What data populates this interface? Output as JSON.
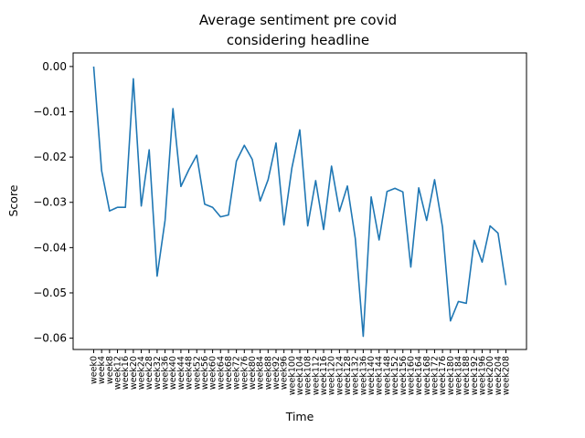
{
  "chart_data": {
    "type": "line",
    "title_lines": [
      "Average sentiment pre covid",
      "considering headline"
    ],
    "xlabel": "Time",
    "ylabel": "Score",
    "ylim": [
      -0.0625,
      0.003
    ],
    "yticks": [
      0.0,
      -0.01,
      -0.02,
      -0.03,
      -0.04,
      -0.05,
      -0.06
    ],
    "ytick_labels": [
      "0.00",
      "−0.01",
      "−0.02",
      "−0.03",
      "−0.04",
      "−0.05",
      "−0.06"
    ],
    "grid": false,
    "categories": [
      "week0",
      "week4",
      "week8",
      "week12",
      "week16",
      "week20",
      "week24",
      "week28",
      "week32",
      "week36",
      "week40",
      "week44",
      "week48",
      "week52",
      "week56",
      "week60",
      "week64",
      "week68",
      "week72",
      "week76",
      "week80",
      "week84",
      "week88",
      "week92",
      "week96",
      "week100",
      "week104",
      "week108",
      "week112",
      "week116",
      "week120",
      "week124",
      "week128",
      "week132",
      "week136",
      "week140",
      "week144",
      "week148",
      "week152",
      "week156",
      "week160",
      "week164",
      "week168",
      "week172",
      "week176",
      "week180",
      "week184",
      "week188",
      "week192",
      "week196",
      "week200",
      "week204",
      "week208"
    ],
    "series": [
      {
        "color": "#1f77b4",
        "values": [
          0.0,
          -0.023,
          -0.0319,
          -0.0311,
          -0.0311,
          -0.0027,
          -0.0308,
          -0.0184,
          -0.0463,
          -0.034,
          -0.0093,
          -0.0265,
          -0.0228,
          -0.0196,
          -0.0304,
          -0.0311,
          -0.0332,
          -0.0328,
          -0.0209,
          -0.0174,
          -0.0205,
          -0.0297,
          -0.025,
          -0.0169,
          -0.035,
          -0.0224,
          -0.014,
          -0.0352,
          -0.0252,
          -0.036,
          -0.022,
          -0.032,
          -0.0264,
          -0.038,
          -0.0596,
          -0.0288,
          -0.0383,
          -0.0276,
          -0.0269,
          -0.0277,
          -0.0443,
          -0.0268,
          -0.034,
          -0.025,
          -0.0355,
          -0.0562,
          -0.0519,
          -0.0523,
          -0.0384,
          -0.0432,
          -0.0352,
          -0.0368,
          -0.0483
        ]
      }
    ]
  }
}
